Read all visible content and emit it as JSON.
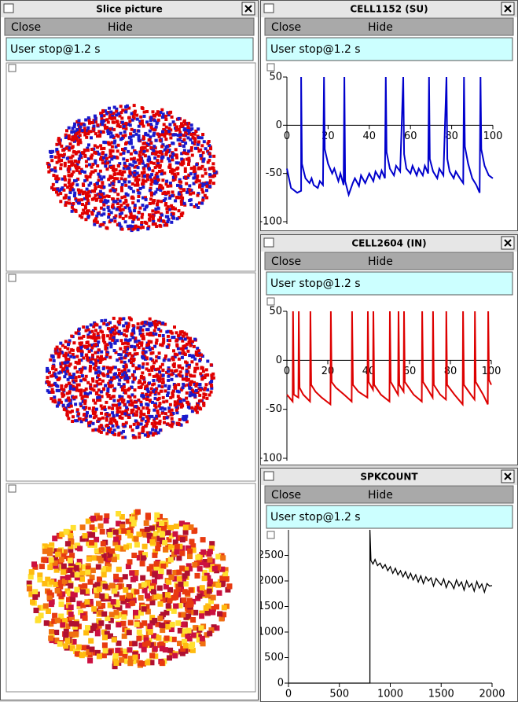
{
  "windows": [
    {
      "title": "Slice picture",
      "menu": [
        "Close",
        "Hide"
      ],
      "status": "User stop@1.2 s"
    },
    {
      "title": "CELL1152 (SU)",
      "menu": [
        "Close",
        "Hide"
      ],
      "status": "User stop@1.2 s"
    },
    {
      "title": "CELL2604 (IN)",
      "menu": [
        "Close",
        "Hide"
      ],
      "status": "User stop@1.2 s"
    },
    {
      "title": "SPKCOUNT",
      "menu": [
        "Close",
        "Hide"
      ],
      "status": "User stop@1.2 s"
    }
  ],
  "chart_data": [
    {
      "type": "line",
      "xlim": [
        0,
        100
      ],
      "ylim": [
        -100,
        50
      ],
      "xticks": [
        0,
        20,
        40,
        60,
        80,
        100
      ],
      "yticks": [
        50,
        0,
        -50,
        -100
      ],
      "x": [
        0,
        2,
        5,
        6.9,
        6.9,
        7.3,
        9,
        11,
        12,
        13,
        15,
        16,
        17.5,
        18,
        18.4,
        20,
        22,
        23,
        25,
        26,
        27.5,
        27.9,
        28.3,
        30,
        32,
        33,
        35,
        36,
        38,
        40,
        42,
        43,
        45,
        46,
        47.6,
        48,
        48.4,
        50,
        52,
        53,
        55,
        56.5,
        56.9,
        58,
        60,
        61,
        63,
        64,
        66,
        67,
        68.6,
        69,
        69.4,
        71,
        73,
        74,
        76,
        77.5,
        77.9,
        79,
        81,
        82,
        84,
        85.6,
        86,
        86.4,
        88,
        90,
        92,
        93.6,
        94,
        94.4,
        96,
        98,
        100
      ],
      "series": [
        {
          "color": "#0000cc",
          "values": [
            -45,
            -65,
            -70,
            -68,
            50,
            -40,
            -55,
            -60,
            -55,
            -62,
            -65,
            -58,
            -62,
            50,
            -25,
            -40,
            -50,
            -45,
            -58,
            -50,
            -62,
            50,
            -58,
            -72,
            -60,
            -55,
            -63,
            -52,
            -60,
            -50,
            -58,
            -48,
            -55,
            -47,
            -55,
            50,
            -28,
            -45,
            -52,
            -42,
            -48,
            50,
            -30,
            -45,
            -50,
            -42,
            -52,
            -45,
            -52,
            -42,
            -50,
            50,
            -35,
            -48,
            -55,
            -45,
            -52,
            50,
            -35,
            -48,
            -55,
            -48,
            -55,
            -60,
            50,
            -22,
            -40,
            -55,
            -62,
            -70,
            50,
            -25,
            -42,
            -52,
            -55
          ]
        }
      ]
    },
    {
      "type": "line",
      "xlim": [
        0,
        100
      ],
      "ylim": [
        -100,
        50
      ],
      "xticks": [
        0,
        20,
        40,
        60,
        80,
        100
      ],
      "yticks": [
        50,
        0,
        -50,
        -100
      ],
      "x": [
        0,
        2,
        2.8,
        3,
        3.4,
        5.6,
        5.8,
        6.2,
        8,
        11.3,
        11.5,
        11.9,
        14,
        17,
        21.3,
        21.5,
        21.9,
        24,
        28,
        31.7,
        31.9,
        32.3,
        35,
        39.4,
        39.6,
        40,
        42.1,
        42.3,
        42.7,
        46,
        50.2,
        50.4,
        50.8,
        54.4,
        54.6,
        55,
        57.1,
        57.3,
        57.7,
        62,
        66,
        66.2,
        66.6,
        69,
        71.3,
        71.5,
        71.9,
        75,
        77.8,
        78,
        78.4,
        82,
        86,
        86.2,
        86.6,
        90,
        91.8,
        92,
        92.4,
        96,
        98.3,
        98.5,
        98.9,
        100
      ],
      "series": [
        {
          "color": "#dd0000",
          "values": [
            -35,
            -40,
            -42,
            50,
            -35,
            -38,
            50,
            -28,
            -35,
            -42,
            50,
            -25,
            -32,
            -38,
            -45,
            50,
            -22,
            -28,
            -35,
            -42,
            50,
            -25,
            -32,
            -38,
            50,
            -22,
            -30,
            50,
            -25,
            -35,
            -42,
            50,
            -22,
            -35,
            50,
            -25,
            -32,
            50,
            -22,
            -35,
            -42,
            50,
            -22,
            -30,
            -38,
            50,
            -25,
            -35,
            -40,
            50,
            -25,
            -35,
            -45,
            50,
            -25,
            -35,
            -40,
            50,
            -22,
            -35,
            -45,
            50,
            -20,
            -25
          ]
        }
      ]
    },
    {
      "type": "line",
      "xlim": [
        0,
        2000
      ],
      "ylim": [
        0,
        3000
      ],
      "xticks": [
        0,
        500,
        1000,
        1500,
        2000
      ],
      "yticks": [
        0,
        500,
        1000,
        1500,
        2000,
        2500
      ],
      "x": [
        0,
        800,
        800,
        810,
        830,
        850,
        875,
        900,
        925,
        950,
        975,
        1000,
        1025,
        1050,
        1075,
        1100,
        1125,
        1150,
        1175,
        1200,
        1225,
        1250,
        1275,
        1300,
        1325,
        1350,
        1375,
        1400,
        1425,
        1450,
        1475,
        1500,
        1525,
        1550,
        1575,
        1600,
        1625,
        1650,
        1675,
        1700,
        1725,
        1750,
        1775,
        1800,
        1825,
        1850,
        1875,
        1900,
        1925,
        1950,
        1975,
        2000
      ],
      "series": [
        {
          "color": "#000000",
          "values": [
            0,
            0,
            3000,
            2400,
            2330,
            2420,
            2300,
            2350,
            2250,
            2320,
            2200,
            2280,
            2150,
            2250,
            2120,
            2200,
            2080,
            2180,
            2050,
            2150,
            2020,
            2120,
            1980,
            2100,
            1950,
            2080,
            2000,
            2060,
            1900,
            2050,
            1980,
            1920,
            2040,
            1870,
            2000,
            1950,
            1850,
            2020,
            1900,
            1980,
            1820,
            2000,
            1880,
            1950,
            1800,
            1990,
            1860,
            1940,
            1780,
            1950,
            1900,
            1910
          ]
        }
      ]
    }
  ]
}
